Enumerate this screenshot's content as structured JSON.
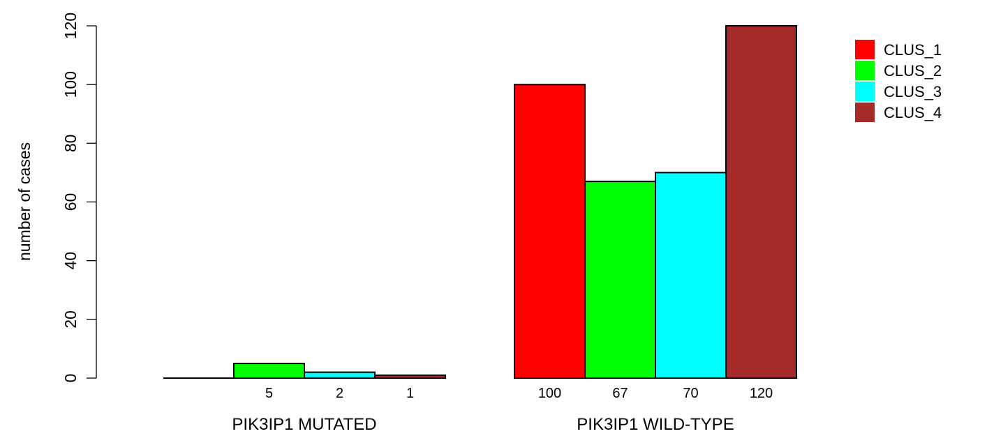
{
  "chart_data": {
    "type": "bar",
    "ylabel": "number of cases",
    "ylim": [
      0,
      120
    ],
    "yticks": [
      0,
      20,
      40,
      60,
      80,
      100,
      120
    ],
    "groups": [
      {
        "name": "PIK3IP1 MUTATED",
        "values": [
          0,
          5,
          2,
          1
        ],
        "labels": [
          "",
          "5",
          "2",
          "1"
        ]
      },
      {
        "name": "PIK3IP1 WILD-TYPE",
        "values": [
          100,
          67,
          70,
          120
        ],
        "labels": [
          "100",
          "67",
          "70",
          "120"
        ]
      }
    ],
    "series": [
      {
        "name": "CLUS_1",
        "color": "#ff0000"
      },
      {
        "name": "CLUS_2",
        "color": "#00ff00"
      },
      {
        "name": "CLUS_3",
        "color": "#00ffff"
      },
      {
        "name": "CLUS_4",
        "color": "#a52a2a"
      }
    ],
    "legend_position": "top-right",
    "grid": false
  }
}
